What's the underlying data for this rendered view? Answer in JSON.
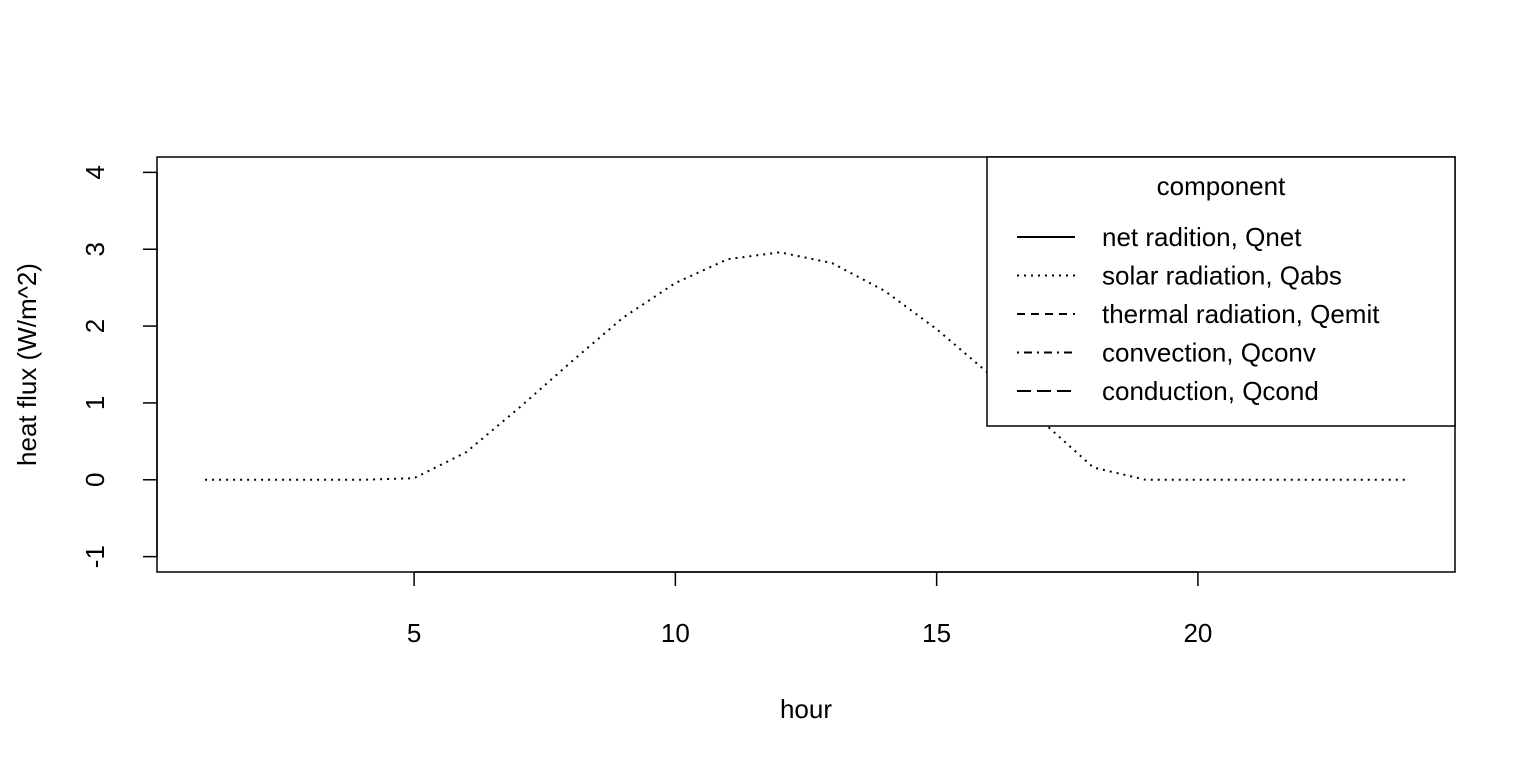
{
  "chart_data": {
    "type": "line",
    "title": "",
    "xlabel": "hour",
    "ylabel": "heat flux (W/m^2)",
    "xlim": [
      0.08,
      24.92
    ],
    "ylim": [
      -1.2,
      4.2
    ],
    "xticks": [
      5,
      10,
      15,
      20
    ],
    "yticks": [
      -1,
      0,
      1,
      2,
      3,
      4
    ],
    "grid": false,
    "legend": {
      "title": "component",
      "placement": "top-right",
      "entries": [
        {
          "label": "net radition, Qnet",
          "lty": "solid"
        },
        {
          "label": "solar radiation, Qabs",
          "lty": "dotted"
        },
        {
          "label": "thermal radiation, Qemit",
          "lty": "dashed"
        },
        {
          "label": "convection, Qconv",
          "lty": "dotdash"
        },
        {
          "label": "conduction, Qcond",
          "lty": "longdash"
        }
      ]
    },
    "series": [
      {
        "lty": "dotted",
        "x": [
          1,
          2,
          3,
          4,
          5,
          6,
          7,
          8,
          9,
          10,
          11,
          12,
          13,
          14,
          15,
          16,
          17,
          18,
          19,
          20,
          21,
          22,
          23,
          24
        ],
        "y": [
          0,
          0,
          0,
          0,
          0.02,
          0.36,
          0.93,
          1.53,
          2.11,
          2.56,
          2.87,
          2.96,
          2.82,
          2.46,
          1.96,
          1.38,
          0.77,
          0.16,
          0,
          0,
          0,
          0,
          0,
          0
        ]
      }
    ]
  }
}
